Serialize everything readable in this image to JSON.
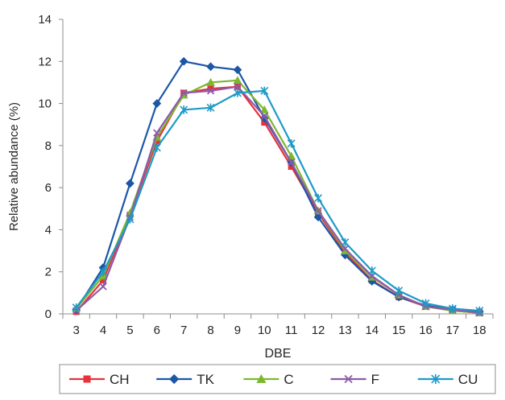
{
  "chart_data": {
    "type": "line",
    "title": "",
    "xlabel": "DBE",
    "ylabel": "Relative abundance (%)",
    "categories": [
      "3",
      "4",
      "5",
      "6",
      "7",
      "8",
      "9",
      "10",
      "11",
      "12",
      "13",
      "14",
      "15",
      "16",
      "17",
      "18"
    ],
    "ylim": [
      0,
      14
    ],
    "yticks": [
      "0",
      "2",
      "4",
      "6",
      "8",
      "10",
      "12",
      "14"
    ],
    "grid": false,
    "legend_position": "bottom",
    "series": [
      {
        "name": "CH",
        "color": "#E8313A",
        "marker": "square",
        "values": [
          0.1,
          1.6,
          4.7,
          8.2,
          10.5,
          10.7,
          10.8,
          9.1,
          7.0,
          4.8,
          2.9,
          1.6,
          0.8,
          0.35,
          0.15,
          0.05
        ]
      },
      {
        "name": "TK",
        "color": "#1B57A7",
        "marker": "diamond",
        "values": [
          0.2,
          2.2,
          6.2,
          10.0,
          12.0,
          11.75,
          11.6,
          9.3,
          7.2,
          4.6,
          2.8,
          1.55,
          0.8,
          0.4,
          0.2,
          0.1
        ]
      },
      {
        "name": "C",
        "color": "#7DB72F",
        "marker": "triangle",
        "values": [
          0.25,
          1.8,
          4.8,
          8.4,
          10.4,
          11.0,
          11.1,
          9.7,
          7.5,
          4.9,
          3.0,
          1.75,
          0.9,
          0.35,
          0.15,
          0.05
        ]
      },
      {
        "name": "F",
        "color": "#8E5AA8",
        "marker": "x",
        "values": [
          0.15,
          1.3,
          4.6,
          8.6,
          10.5,
          10.6,
          10.8,
          9.4,
          7.2,
          4.9,
          3.1,
          1.8,
          0.9,
          0.35,
          0.2,
          0.05
        ]
      },
      {
        "name": "CU",
        "color": "#1E9AC8",
        "marker": "star",
        "values": [
          0.3,
          2.0,
          4.5,
          7.9,
          9.7,
          9.8,
          10.5,
          10.6,
          8.1,
          5.5,
          3.4,
          2.05,
          1.1,
          0.5,
          0.25,
          0.15
        ]
      }
    ]
  }
}
